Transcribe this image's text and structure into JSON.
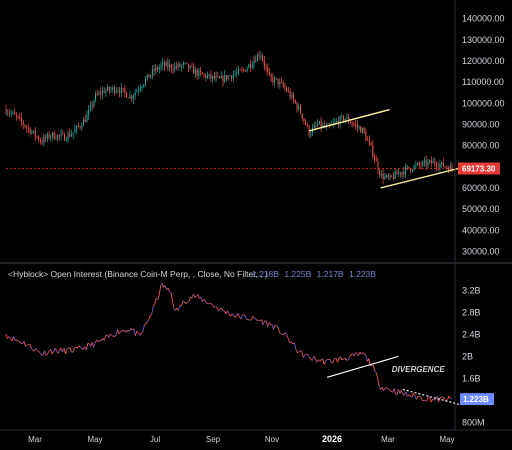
{
  "chart_data": [
    {
      "type": "candlestick",
      "panel": "price",
      "ylim": [
        25000,
        145000
      ],
      "yticks": [
        "140000.00",
        "130000.00",
        "120000.00",
        "110000.00",
        "100000.00",
        "90000.00",
        "80000.00",
        "70000.00",
        "60000.00",
        "50000.00",
        "40000.00",
        "30000.00"
      ],
      "ytick_values": [
        140000,
        130000,
        120000,
        110000,
        100000,
        90000,
        80000,
        70000,
        60000,
        50000,
        40000,
        30000
      ],
      "current_price": 69173.3,
      "current_price_label": "69173.30",
      "colors": {
        "up": "#26a69a",
        "down": "#ef5350",
        "badge": "#e53935",
        "trendline": "#fff59d"
      },
      "close_path": [
        {
          "t": 0,
          "v": 97000
        },
        {
          "t": 0.02,
          "v": 94000
        },
        {
          "t": 0.05,
          "v": 88000
        },
        {
          "t": 0.08,
          "v": 82000
        },
        {
          "t": 0.1,
          "v": 85000
        },
        {
          "t": 0.13,
          "v": 84000
        },
        {
          "t": 0.15,
          "v": 86000
        },
        {
          "t": 0.18,
          "v": 93000
        },
        {
          "t": 0.2,
          "v": 103000
        },
        {
          "t": 0.22,
          "v": 106000
        },
        {
          "t": 0.25,
          "v": 107000
        },
        {
          "t": 0.28,
          "v": 103000
        },
        {
          "t": 0.3,
          "v": 108000
        },
        {
          "t": 0.33,
          "v": 115000
        },
        {
          "t": 0.35,
          "v": 118000
        },
        {
          "t": 0.38,
          "v": 117000
        },
        {
          "t": 0.4,
          "v": 118000
        },
        {
          "t": 0.43,
          "v": 114000
        },
        {
          "t": 0.46,
          "v": 112000
        },
        {
          "t": 0.48,
          "v": 111000
        },
        {
          "t": 0.5,
          "v": 113000
        },
        {
          "t": 0.53,
          "v": 115000
        },
        {
          "t": 0.55,
          "v": 119000
        },
        {
          "t": 0.57,
          "v": 124000
        },
        {
          "t": 0.59,
          "v": 112000
        },
        {
          "t": 0.61,
          "v": 110000
        },
        {
          "t": 0.63,
          "v": 106000
        },
        {
          "t": 0.66,
          "v": 96000
        },
        {
          "t": 0.68,
          "v": 86000
        },
        {
          "t": 0.7,
          "v": 90000
        },
        {
          "t": 0.72,
          "v": 88000
        },
        {
          "t": 0.74,
          "v": 91000
        },
        {
          "t": 0.76,
          "v": 93000
        },
        {
          "t": 0.78,
          "v": 90000
        },
        {
          "t": 0.8,
          "v": 87000
        },
        {
          "t": 0.82,
          "v": 78000
        },
        {
          "t": 0.84,
          "v": 66000
        },
        {
          "t": 0.86,
          "v": 64000
        },
        {
          "t": 0.88,
          "v": 67000
        },
        {
          "t": 0.9,
          "v": 69000
        },
        {
          "t": 0.93,
          "v": 71000
        },
        {
          "t": 0.96,
          "v": 72000
        },
        {
          "t": 1.0,
          "v": 69173
        }
      ],
      "trendlines": [
        {
          "t0": 0.68,
          "v0": 87000,
          "t1": 0.86,
          "v1": 97000
        },
        {
          "t0": 0.84,
          "v0": 60000,
          "t1": 1.03,
          "v1": 70000
        }
      ]
    },
    {
      "type": "line",
      "panel": "open_interest",
      "header": "<Hyblock> Open Interest (Binance Coin-M Perp, , Close, No Filter, , )",
      "header_values": [
        "1.218B",
        "1.225B",
        "1.217B",
        "1.223B"
      ],
      "ylim": [
        0.7,
        3.35
      ],
      "yticks": [
        "3.2B",
        "2.8B",
        "2.4B",
        "2B",
        "1.6B",
        "800M"
      ],
      "ytick_values": [
        3.2,
        2.8,
        2.4,
        2.0,
        1.6,
        0.8
      ],
      "current_value": 1.223,
      "current_value_label": "1.223B",
      "colors": {
        "line_low": "#ef5350",
        "line_high": "#6a5acd",
        "badge": "#6c8cff",
        "trendline": "#ffffff"
      },
      "series": [
        {
          "t": 0,
          "v": 2.4
        },
        {
          "t": 0.02,
          "v": 2.3
        },
        {
          "t": 0.04,
          "v": 2.25
        },
        {
          "t": 0.06,
          "v": 2.15
        },
        {
          "t": 0.08,
          "v": 2.05
        },
        {
          "t": 0.1,
          "v": 2.1
        },
        {
          "t": 0.13,
          "v": 2.1
        },
        {
          "t": 0.16,
          "v": 2.12
        },
        {
          "t": 0.19,
          "v": 2.2
        },
        {
          "t": 0.22,
          "v": 2.3
        },
        {
          "t": 0.25,
          "v": 2.45
        },
        {
          "t": 0.28,
          "v": 2.5
        },
        {
          "t": 0.3,
          "v": 2.35
        },
        {
          "t": 0.33,
          "v": 2.85
        },
        {
          "t": 0.35,
          "v": 3.3
        },
        {
          "t": 0.37,
          "v": 3.15
        },
        {
          "t": 0.38,
          "v": 2.8
        },
        {
          "t": 0.4,
          "v": 3.0
        },
        {
          "t": 0.42,
          "v": 3.1
        },
        {
          "t": 0.45,
          "v": 3.0
        },
        {
          "t": 0.48,
          "v": 2.85
        },
        {
          "t": 0.51,
          "v": 2.75
        },
        {
          "t": 0.54,
          "v": 2.7
        },
        {
          "t": 0.57,
          "v": 2.65
        },
        {
          "t": 0.6,
          "v": 2.55
        },
        {
          "t": 0.63,
          "v": 2.35
        },
        {
          "t": 0.66,
          "v": 2.05
        },
        {
          "t": 0.69,
          "v": 1.95
        },
        {
          "t": 0.72,
          "v": 1.9
        },
        {
          "t": 0.75,
          "v": 1.95
        },
        {
          "t": 0.78,
          "v": 2.0
        },
        {
          "t": 0.8,
          "v": 2.05
        },
        {
          "t": 0.82,
          "v": 1.85
        },
        {
          "t": 0.84,
          "v": 1.45
        },
        {
          "t": 0.86,
          "v": 1.4
        },
        {
          "t": 0.88,
          "v": 1.35
        },
        {
          "t": 0.9,
          "v": 1.3
        },
        {
          "t": 0.93,
          "v": 1.25
        },
        {
          "t": 0.96,
          "v": 1.22
        },
        {
          "t": 1.0,
          "v": 1.223
        }
      ],
      "trendlines": [
        {
          "t0": 0.72,
          "v0": 1.62,
          "t1": 0.88,
          "v1": 2.0,
          "style": "solid"
        },
        {
          "t0": 0.89,
          "v0": 1.4,
          "t1": 1.02,
          "v1": 1.12,
          "style": "dashed"
        }
      ],
      "annotation": "DIVERGENCE"
    }
  ],
  "x_axis": {
    "labels": [
      "Mar",
      "May",
      "Jul",
      "Sep",
      "Nov",
      "2026",
      "Mar",
      "May"
    ],
    "bold_label": "2026"
  }
}
